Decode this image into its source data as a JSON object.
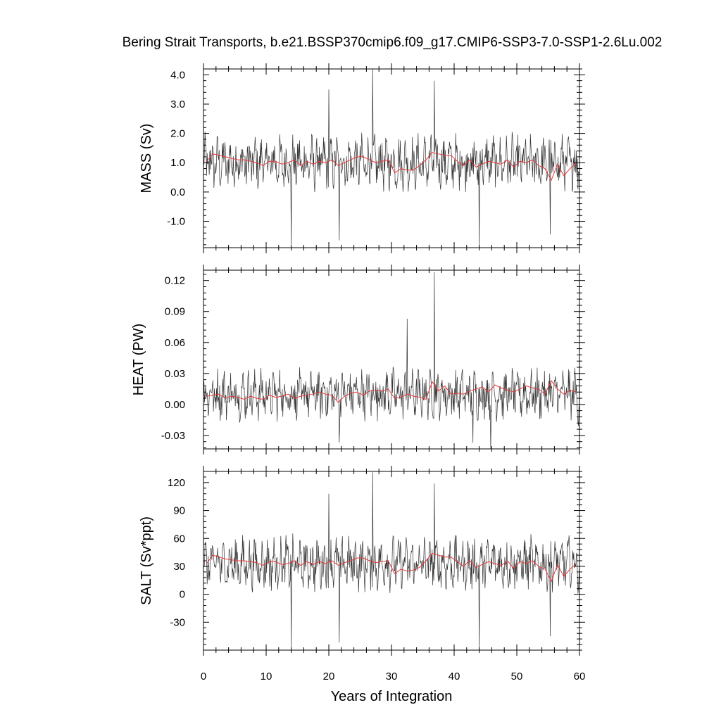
{
  "title": "Bering Strait Transports, b.e21.BSSP370cmip6.f09_g17.CMIP6-SSP3-7.0-SSP1-2.6Lu.002",
  "xlabel": "Years of Integration",
  "x_tick_labels": [
    "0",
    "10",
    "20",
    "30",
    "40",
    "50",
    "60"
  ],
  "colors": {
    "monthly": "#333333",
    "annual": "#e8383a",
    "frame": "#000000"
  },
  "chart_data": [
    {
      "type": "line",
      "ylabel": "MASS (Sv)",
      "xlim": [
        0,
        60
      ],
      "ylim": [
        -1.9,
        4.2
      ],
      "y_tick_labels": [
        "-1.0",
        "0.0",
        "1.0",
        "2.0",
        "3.0",
        "4.0"
      ],
      "y_ticks": [
        -1.0,
        0.0,
        1.0,
        2.0,
        3.0,
        4.0
      ],
      "annual_mean_years": [
        0.5,
        1.5,
        2.5,
        3.5,
        4.5,
        5.5,
        6.5,
        7.5,
        8.5,
        9.5,
        10.5,
        11.5,
        12.5,
        13.5,
        14.5,
        15.5,
        16.5,
        17.5,
        18.5,
        19.5,
        20.5,
        21.5,
        22.5,
        23.5,
        24.5,
        25.5,
        26.5,
        27.5,
        28.5,
        29.5,
        30.5,
        31.5,
        32.5,
        33.5,
        34.5,
        35.5,
        36.5,
        37.5,
        38.5,
        39.5,
        40.5,
        41.5,
        42.5,
        43.5,
        44.5,
        45.5,
        46.5,
        47.5,
        48.5,
        49.5,
        50.5,
        51.5,
        52.5,
        53.5,
        54.5,
        55.5,
        56.5,
        57.5,
        58.5,
        59.5
      ],
      "annual_mean": [
        1.05,
        1.3,
        1.25,
        1.2,
        1.15,
        1.1,
        1.1,
        1.05,
        1.0,
        0.9,
        1.05,
        1.05,
        0.95,
        1.0,
        1.1,
        0.9,
        1.05,
        0.95,
        1.05,
        1.0,
        1.1,
        0.9,
        1.0,
        1.1,
        1.2,
        1.2,
        1.1,
        1.0,
        1.05,
        1.1,
        0.65,
        0.8,
        0.75,
        0.75,
        0.9,
        1.1,
        1.35,
        1.3,
        1.25,
        1.25,
        1.05,
        0.9,
        1.1,
        0.85,
        0.95,
        1.05,
        1.0,
        0.95,
        1.1,
        0.85,
        1.05,
        1.0,
        1.1,
        0.9,
        0.8,
        0.4,
        0.95,
        0.55,
        0.8,
        1.0
      ],
      "monthly_spikes": [
        {
          "year": 14.0,
          "value": -1.8
        },
        {
          "year": 20.0,
          "value": 3.5
        },
        {
          "year": 21.7,
          "value": -1.65
        },
        {
          "year": 27.0,
          "value": 4.2
        },
        {
          "year": 36.8,
          "value": 3.8
        },
        {
          "year": 44.0,
          "value": -1.9
        },
        {
          "year": 55.3,
          "value": -1.45
        }
      ],
      "monthly_mean": 1.0,
      "monthly_amp": 0.85
    },
    {
      "type": "line",
      "ylabel": "HEAT (PW)",
      "xlim": [
        0,
        60
      ],
      "ylim": [
        -0.043,
        0.13
      ],
      "y_tick_labels": [
        "-0.03",
        "0.00",
        "0.03",
        "0.06",
        "0.09",
        "0.12"
      ],
      "y_ticks": [
        -0.03,
        0.0,
        0.03,
        0.06,
        0.09,
        0.12
      ],
      "annual_mean_years": [
        0.5,
        1.5,
        2.5,
        3.5,
        4.5,
        5.5,
        6.5,
        7.5,
        8.5,
        9.5,
        10.5,
        11.5,
        12.5,
        13.5,
        14.5,
        15.5,
        16.5,
        17.5,
        18.5,
        19.5,
        20.5,
        21.5,
        22.5,
        23.5,
        24.5,
        25.5,
        26.5,
        27.5,
        28.5,
        29.5,
        30.5,
        31.5,
        32.5,
        33.5,
        34.5,
        35.5,
        36.5,
        37.5,
        38.5,
        39.5,
        40.5,
        41.5,
        42.5,
        43.5,
        44.5,
        45.5,
        46.5,
        47.5,
        48.5,
        49.5,
        50.5,
        51.5,
        52.5,
        53.5,
        54.5,
        55.5,
        56.5,
        57.5,
        58.5,
        59.5
      ],
      "annual_mean": [
        0.008,
        0.009,
        0.01,
        0.006,
        0.008,
        0.007,
        0.005,
        0.008,
        0.006,
        0.005,
        0.009,
        0.007,
        0.008,
        0.01,
        0.006,
        0.008,
        0.009,
        0.01,
        0.012,
        0.01,
        0.009,
        0.002,
        0.008,
        0.011,
        0.012,
        0.009,
        0.013,
        0.014,
        0.013,
        0.015,
        0.006,
        0.007,
        0.01,
        0.008,
        0.007,
        0.005,
        0.022,
        0.013,
        0.018,
        0.01,
        0.011,
        0.01,
        0.013,
        0.015,
        0.017,
        0.012,
        0.019,
        0.016,
        0.014,
        0.012,
        0.015,
        0.018,
        0.016,
        0.015,
        0.01,
        0.023,
        0.015,
        0.01,
        0.014,
        0.012
      ],
      "monthly_spikes": [
        {
          "year": 21.7,
          "value": -0.037
        },
        {
          "year": 32.5,
          "value": 0.083
        },
        {
          "year": 36.8,
          "value": 0.128
        },
        {
          "year": 43.0,
          "value": -0.037
        },
        {
          "year": 45.8,
          "value": -0.043
        },
        {
          "year": 59.8,
          "value": -0.021
        }
      ],
      "monthly_mean": 0.01,
      "monthly_amp": 0.022
    },
    {
      "type": "line",
      "ylabel": "SALT (Sv*ppt)",
      "xlim": [
        0,
        60
      ],
      "ylim": [
        -60,
        132
      ],
      "y_tick_labels": [
        "-30",
        "0",
        "30",
        "60",
        "90",
        "120"
      ],
      "y_ticks": [
        -30,
        0,
        30,
        60,
        90,
        120
      ],
      "annual_mean_years": [
        0.5,
        1.5,
        2.5,
        3.5,
        4.5,
        5.5,
        6.5,
        7.5,
        8.5,
        9.5,
        10.5,
        11.5,
        12.5,
        13.5,
        14.5,
        15.5,
        16.5,
        17.5,
        18.5,
        19.5,
        20.5,
        21.5,
        22.5,
        23.5,
        24.5,
        25.5,
        26.5,
        27.5,
        28.5,
        29.5,
        30.5,
        31.5,
        32.5,
        33.5,
        34.5,
        35.5,
        36.5,
        37.5,
        38.5,
        39.5,
        40.5,
        41.5,
        42.5,
        43.5,
        44.5,
        45.5,
        46.5,
        47.5,
        48.5,
        49.5,
        50.5,
        51.5,
        52.5,
        53.5,
        54.5,
        55.5,
        56.5,
        57.5,
        58.5,
        59.5
      ],
      "annual_mean": [
        33,
        42,
        40,
        38,
        37,
        36,
        36,
        35,
        34,
        31,
        35,
        35,
        32,
        33,
        36,
        31,
        35,
        32,
        35,
        33,
        36,
        31,
        34,
        36,
        39,
        39,
        36,
        34,
        35,
        36,
        22,
        27,
        25,
        26,
        29,
        36,
        44,
        42,
        40,
        40,
        35,
        30,
        36,
        29,
        32,
        35,
        33,
        31,
        36,
        28,
        35,
        33,
        36,
        30,
        27,
        14,
        32,
        19,
        27,
        33
      ],
      "monthly_spikes": [
        {
          "year": 14.0,
          "value": -57
        },
        {
          "year": 20.0,
          "value": 108
        },
        {
          "year": 21.7,
          "value": -52
        },
        {
          "year": 27.0,
          "value": 131
        },
        {
          "year": 36.8,
          "value": 119
        },
        {
          "year": 44.0,
          "value": -60
        },
        {
          "year": 55.3,
          "value": -45
        }
      ],
      "monthly_mean": 33,
      "monthly_amp": 26
    }
  ]
}
